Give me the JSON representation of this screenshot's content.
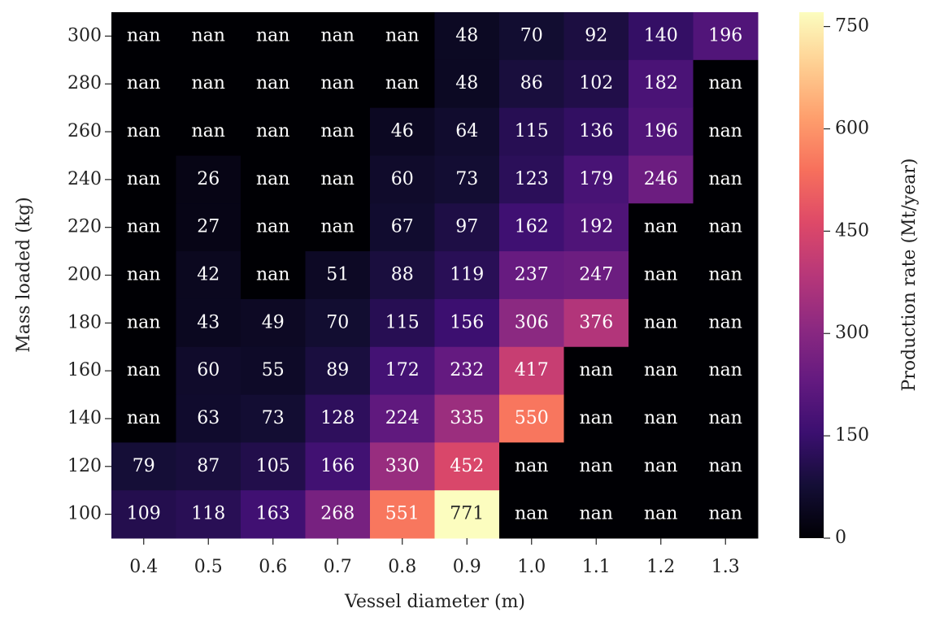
{
  "chart_data": {
    "type": "heatmap",
    "x_label": "Vessel diameter (m)",
    "y_label": "Mass loaded (kg)",
    "colorbar_label": "Production rate (Mt/year)",
    "categories": [
      "0.4",
      "0.5",
      "0.6",
      "0.7",
      "0.8",
      "0.9",
      "1.0",
      "1.1",
      "1.2",
      "1.3"
    ],
    "y_categories": [
      300,
      280,
      260,
      240,
      220,
      200,
      180,
      160,
      140,
      120,
      100
    ],
    "values": [
      [
        null,
        null,
        null,
        null,
        null,
        48,
        70,
        92,
        140,
        196
      ],
      [
        null,
        null,
        null,
        null,
        null,
        48,
        86,
        102,
        182,
        null
      ],
      [
        null,
        null,
        null,
        null,
        46,
        64,
        115,
        136,
        196,
        null
      ],
      [
        null,
        26,
        null,
        null,
        60,
        73,
        123,
        179,
        246,
        null
      ],
      [
        null,
        27,
        null,
        null,
        67,
        97,
        162,
        192,
        null,
        null
      ],
      [
        null,
        42,
        null,
        51,
        88,
        119,
        237,
        247,
        null,
        null
      ],
      [
        null,
        43,
        49,
        70,
        115,
        156,
        306,
        376,
        null,
        null
      ],
      [
        null,
        60,
        55,
        89,
        172,
        232,
        417,
        null,
        null,
        null
      ],
      [
        null,
        63,
        73,
        128,
        224,
        335,
        550,
        null,
        null,
        null
      ],
      [
        79,
        87,
        105,
        166,
        330,
        452,
        null,
        null,
        null,
        null
      ],
      [
        109,
        118,
        163,
        268,
        551,
        771,
        null,
        null,
        null,
        null
      ]
    ],
    "value_labels": [
      [
        "nan",
        "nan",
        "nan",
        "nan",
        "nan",
        "48",
        "70",
        "92",
        "140",
        "196"
      ],
      [
        "nan",
        "nan",
        "nan",
        "nan",
        "nan",
        "48",
        "86",
        "102",
        "182",
        "nan"
      ],
      [
        "nan",
        "nan",
        "nan",
        "nan",
        "46",
        "64",
        "115",
        "136",
        "196",
        "nan"
      ],
      [
        "nan",
        "26",
        "nan",
        "nan",
        "60",
        "73",
        "123",
        "179",
        "246",
        "nan"
      ],
      [
        "nan",
        "27",
        "nan",
        "nan",
        "67",
        "97",
        "162",
        "192",
        "nan",
        "nan"
      ],
      [
        "nan",
        "42",
        "nan",
        "51",
        "88",
        "119",
        "237",
        "247",
        "nan",
        "nan"
      ],
      [
        "nan",
        "43",
        "49",
        "70",
        "115",
        "156",
        "306",
        "376",
        "nan",
        "nan"
      ],
      [
        "nan",
        "60",
        "55",
        "89",
        "172",
        "232",
        "417",
        "nan",
        "nan",
        "nan"
      ],
      [
        "nan",
        "63",
        "73",
        "128",
        "224",
        "335",
        "550",
        "nan",
        "nan",
        "nan"
      ],
      [
        "79",
        "87",
        "105",
        "166",
        "330",
        "452",
        "nan",
        "nan",
        "nan",
        "nan"
      ],
      [
        "109",
        "118",
        "163",
        "268",
        "551",
        "771",
        "nan",
        "nan",
        "nan",
        "nan"
      ]
    ],
    "zlim": [
      0,
      771
    ],
    "zticks": [
      0,
      150,
      300,
      450,
      600,
      750
    ],
    "colormap": [
      "#000004",
      "#140e36",
      "#3b0f70",
      "#641a80",
      "#8c2981",
      "#b73779",
      "#de4968",
      "#f7705c",
      "#fe9f6d",
      "#fecf92",
      "#fcfdbf"
    ]
  }
}
